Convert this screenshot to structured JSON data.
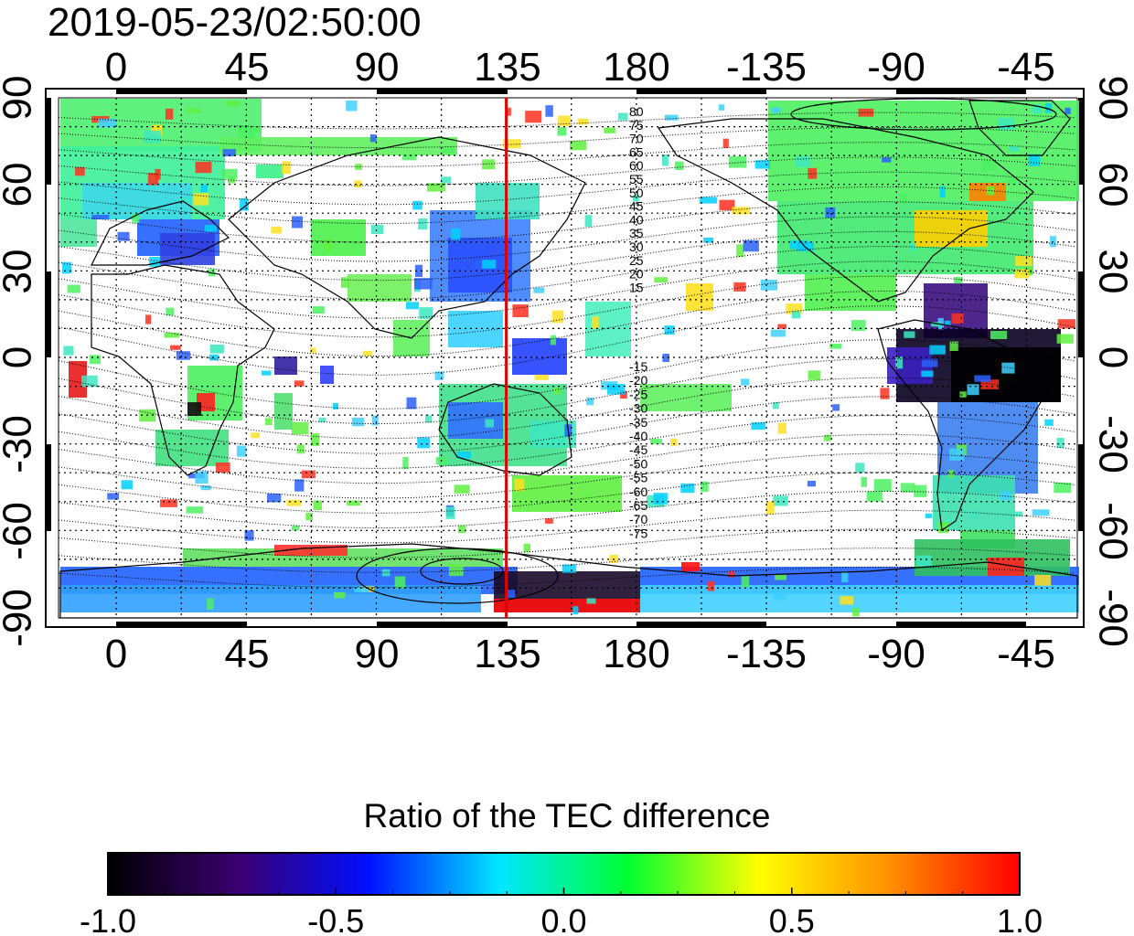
{
  "title": "2019-05-23/02:50:00",
  "map": {
    "top_lon_ticks": [
      "0",
      "45",
      "90",
      "135",
      "180",
      "-135",
      "-90",
      "-45"
    ],
    "bottom_lon_ticks": [
      "0",
      "45",
      "90",
      "135",
      "180",
      "-135",
      "-90",
      "-45"
    ],
    "left_lat_ticks": [
      "90",
      "60",
      "30",
      "0",
      "-30",
      "-60",
      "-90"
    ],
    "right_lat_ticks": [
      "90",
      "60",
      "30",
      "0",
      "-30",
      "-60",
      "-90"
    ],
    "north_contour_labels": [
      "80",
      "75",
      "70",
      "65",
      "60",
      "55",
      "50",
      "45",
      "40",
      "35",
      "30",
      "25",
      "20",
      "15"
    ],
    "south_contour_labels": [
      "-15",
      "-20",
      "-25",
      "-30",
      "-35",
      "-40",
      "-45",
      "-50",
      "-55",
      "-60",
      "-65",
      "-70",
      "-75"
    ],
    "reference_meridian_lon": 135,
    "colors": {
      "reference_line": "#e00000",
      "frame": "#000000",
      "land": "#000000"
    }
  },
  "colorbar": {
    "title": "Ratio of the TEC difference",
    "tick_labels": [
      "-1.0",
      "-0.5",
      "0.0",
      "0.5",
      "1.0"
    ],
    "range": [
      -1.0,
      1.0
    ],
    "colormap": [
      "#000000",
      "#3a0070",
      "#0010ff",
      "#00e6ff",
      "#00ff30",
      "#ffff00",
      "#ff9000",
      "#ff0000"
    ]
  }
}
